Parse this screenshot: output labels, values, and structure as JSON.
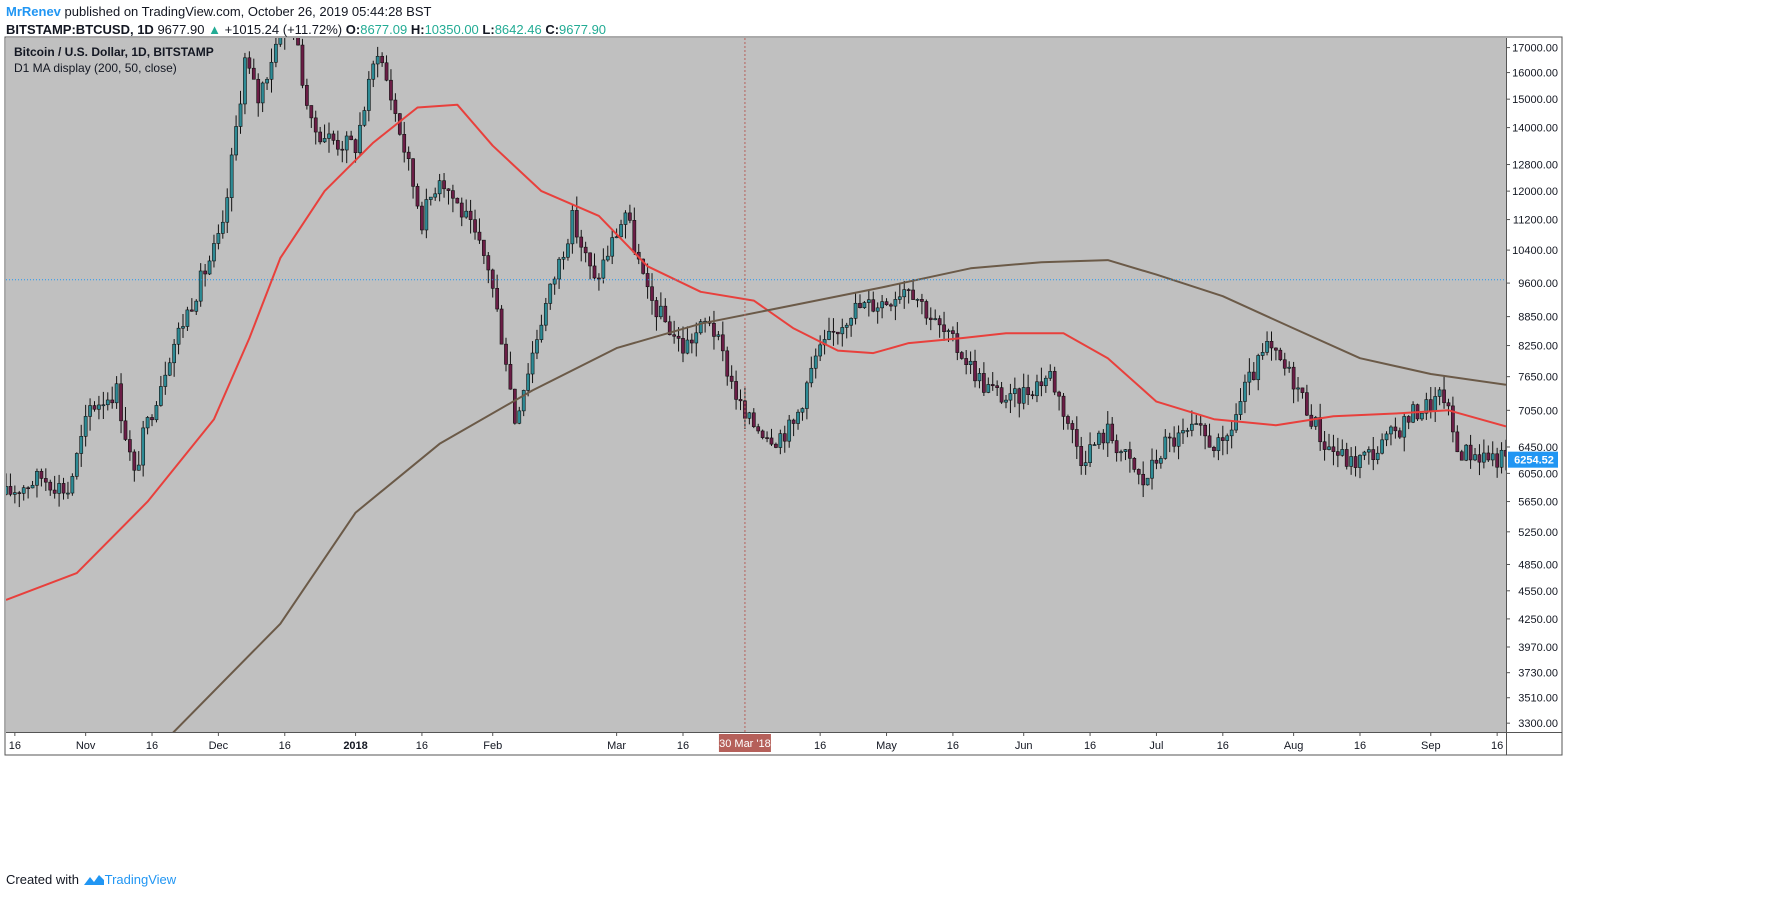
{
  "header": {
    "author": "MrRenev",
    "published_text": "published on TradingView.com, October 26, 2019 05:44:28 BST",
    "symbol": "BITSTAMP:BTCUSD, 1D",
    "last": "9677.90",
    "change": "+1015.24 (+11.72%)",
    "ohlc": {
      "o_label": "O:",
      "o": "8677.09",
      "h_label": "H:",
      "h": "10350.00",
      "l_label": "L:",
      "l": "8642.46",
      "c_label": "C:",
      "c": "9677.90"
    }
  },
  "legend": {
    "title": "Bitcoin / U.S. Dollar, 1D, BITSTAMP",
    "indicator": "D1 MA display (200, 50, close)"
  },
  "footer": {
    "created_with": "Created with",
    "brand": "TradingView"
  },
  "colors": {
    "plot_bg": "#c0c0c0",
    "up": "#2e8b95",
    "down": "#6b1d46",
    "ma50": "#e8403c",
    "ma200": "#6b5a48",
    "price_line": "#2196f3",
    "price_badge": "#2196f3",
    "date_badge": "#b5605a"
  },
  "chart_data": {
    "type": "candlestick",
    "x_tick_labels": [
      "16",
      "Nov",
      "16",
      "Dec",
      "16",
      "2018",
      "16",
      "Feb",
      "Mar",
      "16",
      "16",
      "May",
      "16",
      "Jun",
      "16",
      "Jul",
      "16",
      "Aug",
      "16",
      "Sep",
      "16"
    ],
    "x_tick_dates": [
      "2017-10-16",
      "2017-11-01",
      "2017-11-16",
      "2017-12-01",
      "2017-12-16",
      "2018-01-01",
      "2018-01-16",
      "2018-02-01",
      "2018-03-01",
      "2018-03-16",
      "2018-04-16",
      "2018-05-01",
      "2018-05-16",
      "2018-06-01",
      "2018-06-16",
      "2018-07-01",
      "2018-07-16",
      "2018-08-01",
      "2018-08-16",
      "2018-09-01",
      "2018-09-16"
    ],
    "y_tick_labels": [
      "17000.00",
      "16000.00",
      "15000.00",
      "14000.00",
      "12800.00",
      "12000.00",
      "11200.00",
      "10400.00",
      "9600.00",
      "8850.00",
      "8250.00",
      "7650.00",
      "7050.00",
      "6450.00",
      "6050.00",
      "5650.00",
      "5250.00",
      "4850.00",
      "4550.00",
      "4250.00",
      "3970.00",
      "3730.00",
      "3510.00",
      "3300.00"
    ],
    "y_scale": "log",
    "y_range": [
      3230,
      17400
    ],
    "x_range": [
      "2017-10-14",
      "2018-09-18"
    ],
    "crosshair_date_label": "30 Mar '18",
    "crosshair_price": 9677.9,
    "last_price_label": "6254.52",
    "last_price": 6254.52,
    "close_path": [
      [
        "2017-10-14",
        5750
      ],
      [
        "2017-10-22",
        6000
      ],
      [
        "2017-10-28",
        5800
      ],
      [
        "2017-11-02",
        7100
      ],
      [
        "2017-11-08",
        7400
      ],
      [
        "2017-11-12",
        6000
      ],
      [
        "2017-11-14",
        6600
      ],
      [
        "2017-11-20",
        8100
      ],
      [
        "2017-11-28",
        9900
      ],
      [
        "2017-12-02",
        10900
      ],
      [
        "2017-12-07",
        16500
      ],
      [
        "2017-12-10",
        15000
      ],
      [
        "2017-12-17",
        19000
      ],
      [
        "2017-12-22",
        14000
      ],
      [
        "2017-12-28",
        13500
      ],
      [
        "2018-01-01",
        13400
      ],
      [
        "2018-01-06",
        17000
      ],
      [
        "2018-01-10",
        14500
      ],
      [
        "2018-01-16",
        11200
      ],
      [
        "2018-01-20",
        12500
      ],
      [
        "2018-01-26",
        11200
      ],
      [
        "2018-01-31",
        10000
      ],
      [
        "2018-02-04",
        8000
      ],
      [
        "2018-02-06",
        6900
      ],
      [
        "2018-02-12",
        8800
      ],
      [
        "2018-02-19",
        11200
      ],
      [
        "2018-02-24",
        9600
      ],
      [
        "2018-03-03",
        11400
      ],
      [
        "2018-03-08",
        9300
      ],
      [
        "2018-03-16",
        8200
      ],
      [
        "2018-03-22",
        8800
      ],
      [
        "2018-03-30",
        6900
      ],
      [
        "2018-04-06",
        6600
      ],
      [
        "2018-04-10",
        6800
      ],
      [
        "2018-04-15",
        8000
      ],
      [
        "2018-04-23",
        9000
      ],
      [
        "2018-05-01",
        9200
      ],
      [
        "2018-05-06",
        9600
      ],
      [
        "2018-05-12",
        8700
      ],
      [
        "2018-05-18",
        8100
      ],
      [
        "2018-05-23",
        7500
      ],
      [
        "2018-05-29",
        7200
      ],
      [
        "2018-06-07",
        7700
      ],
      [
        "2018-06-14",
        6300
      ],
      [
        "2018-06-20",
        6700
      ],
      [
        "2018-06-28",
        5900
      ],
      [
        "2018-07-03",
        6500
      ],
      [
        "2018-07-10",
        6700
      ],
      [
        "2018-07-16",
        6400
      ],
      [
        "2018-07-21",
        7400
      ],
      [
        "2018-07-26",
        8200
      ],
      [
        "2018-08-01",
        7600
      ],
      [
        "2018-08-08",
        6500
      ],
      [
        "2018-08-14",
        6200
      ],
      [
        "2018-08-20",
        6400
      ],
      [
        "2018-08-28",
        7000
      ],
      [
        "2018-09-04",
        7300
      ],
      [
        "2018-09-07",
        6400
      ],
      [
        "2018-09-18",
        6254.52
      ]
    ],
    "series": [
      {
        "name": "MA 50",
        "values": [
          [
            "2017-10-14",
            4450
          ],
          [
            "2017-10-30",
            4750
          ],
          [
            "2017-11-15",
            5650
          ],
          [
            "2017-11-30",
            6900
          ],
          [
            "2017-12-08",
            8400
          ],
          [
            "2017-12-15",
            10200
          ],
          [
            "2017-12-25",
            12000
          ],
          [
            "2018-01-05",
            13500
          ],
          [
            "2018-01-15",
            14700
          ],
          [
            "2018-01-24",
            14800
          ],
          [
            "2018-02-01",
            13400
          ],
          [
            "2018-02-12",
            12000
          ],
          [
            "2018-02-25",
            11300
          ],
          [
            "2018-03-08",
            10000
          ],
          [
            "2018-03-20",
            9400
          ],
          [
            "2018-04-01",
            9200
          ],
          [
            "2018-04-10",
            8600
          ],
          [
            "2018-04-20",
            8150
          ],
          [
            "2018-04-28",
            8100
          ],
          [
            "2018-05-06",
            8300
          ],
          [
            "2018-05-18",
            8400
          ],
          [
            "2018-05-28",
            8500
          ],
          [
            "2018-06-10",
            8500
          ],
          [
            "2018-06-20",
            8000
          ],
          [
            "2018-07-01",
            7200
          ],
          [
            "2018-07-14",
            6900
          ],
          [
            "2018-07-28",
            6800
          ],
          [
            "2018-08-10",
            6950
          ],
          [
            "2018-08-25",
            7000
          ],
          [
            "2018-09-05",
            7050
          ],
          [
            "2018-09-18",
            6780
          ]
        ]
      },
      {
        "name": "MA 200",
        "values": [
          [
            "2017-11-18",
            3130
          ],
          [
            "2017-12-15",
            4200
          ],
          [
            "2018-01-01",
            5500
          ],
          [
            "2018-01-20",
            6500
          ],
          [
            "2018-02-10",
            7400
          ],
          [
            "2018-03-01",
            8200
          ],
          [
            "2018-03-20",
            8700
          ],
          [
            "2018-04-10",
            9100
          ],
          [
            "2018-04-30",
            9500
          ],
          [
            "2018-05-20",
            9950
          ],
          [
            "2018-06-05",
            10100
          ],
          [
            "2018-06-20",
            10150
          ],
          [
            "2018-07-01",
            9800
          ],
          [
            "2018-07-16",
            9300
          ],
          [
            "2018-08-01",
            8600
          ],
          [
            "2018-08-16",
            8000
          ],
          [
            "2018-09-01",
            7700
          ],
          [
            "2018-09-18",
            7500
          ]
        ]
      }
    ]
  }
}
